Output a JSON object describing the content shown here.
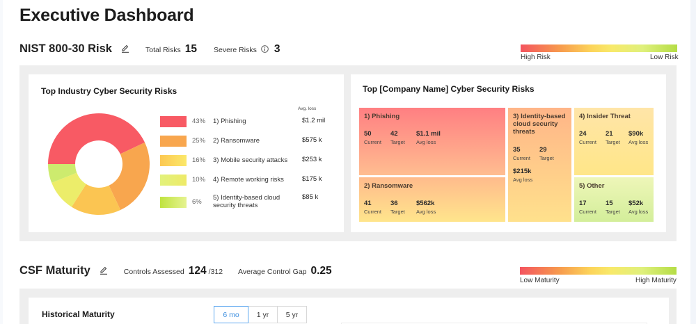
{
  "page": {
    "title": "Executive Dashboard"
  },
  "nist": {
    "title": "NIST 800-30 Risk",
    "edit_icon": "pencil-icon",
    "total_risks_label": "Total Risks",
    "total_risks_value": "15",
    "severe_risks_label": "Severe Risks",
    "severe_info_icon": "info-circle-icon",
    "severe_risks_value": "3",
    "legend": {
      "left_label": "High Risk",
      "right_label": "Low Risk",
      "colors": [
        "#f4545f",
        "#f79a4d",
        "#fcd45a",
        "#f8e96a",
        "#dff07c",
        "#b5dd46"
      ]
    }
  },
  "industry": {
    "title": "Top Industry Cyber Security Risks",
    "avg_loss_header": "Avg. loss",
    "items": [
      {
        "pct": "43%",
        "name": "1) Phishing",
        "loss": "$1.2 mil",
        "color": "#f85a64"
      },
      {
        "pct": "25%",
        "name": "2) Ransomware",
        "loss": "$575 k",
        "color": "#f8a64e"
      },
      {
        "pct": "16%",
        "name": "3) Mobile security attacks",
        "loss": "$253 k",
        "color": "#fbc552"
      },
      {
        "pct": "10%",
        "name": "4) Remote working risks",
        "loss": "$175 k",
        "color": "#eced6a"
      },
      {
        "pct": "6%",
        "name": "5) Identity-based cloud security threats",
        "loss": "$85 k",
        "color": "#cdeb6e"
      }
    ]
  },
  "company": {
    "title": "Top [Company Name] Cyber Security Risks",
    "tiles": [
      {
        "name": "1) Phishing",
        "current": "50",
        "target": "42",
        "avg_loss": "$1.1 mil"
      },
      {
        "name": "2) Ransomware",
        "current": "41",
        "target": "36",
        "avg_loss": "$562k"
      },
      {
        "name": "3) Identity-based cloud security threats",
        "current": "35",
        "target": "29",
        "avg_loss": "$215k"
      },
      {
        "name": "4) Insider Threat",
        "current": "24",
        "target": "21",
        "avg_loss": "$90k"
      },
      {
        "name": "5) Other",
        "current": "17",
        "target": "15",
        "avg_loss": "$52k"
      }
    ],
    "labels": {
      "current": "Current",
      "target": "Target",
      "avg_loss": "Avg loss"
    }
  },
  "csf": {
    "title": "CSF Maturity",
    "edit_icon": "pencil-icon",
    "controls_label": "Controls Assessed",
    "controls_value": "124",
    "controls_total": "/312",
    "gap_label": "Average Control Gap",
    "gap_value": "0.25",
    "legend": {
      "left_label": "Low Maturity",
      "right_label": "High Maturity"
    },
    "historical": {
      "title": "Historical Maturity",
      "ranges": [
        "6 mo",
        "1 yr",
        "5 yr"
      ],
      "selected": "6 mo"
    }
  },
  "chart_data": {
    "type": "pie",
    "title": "Top Industry Cyber Security Risks",
    "categories": [
      "1) Phishing",
      "2) Ransomware",
      "3) Mobile security attacks",
      "4) Remote working risks",
      "5) Identity-based cloud security threats"
    ],
    "values": [
      43,
      25,
      16,
      10,
      6
    ],
    "avg_loss": [
      "$1.2 mil",
      "$575 k",
      "$253 k",
      "$175 k",
      "$85 k"
    ],
    "donut": true,
    "legend_position": "right"
  }
}
